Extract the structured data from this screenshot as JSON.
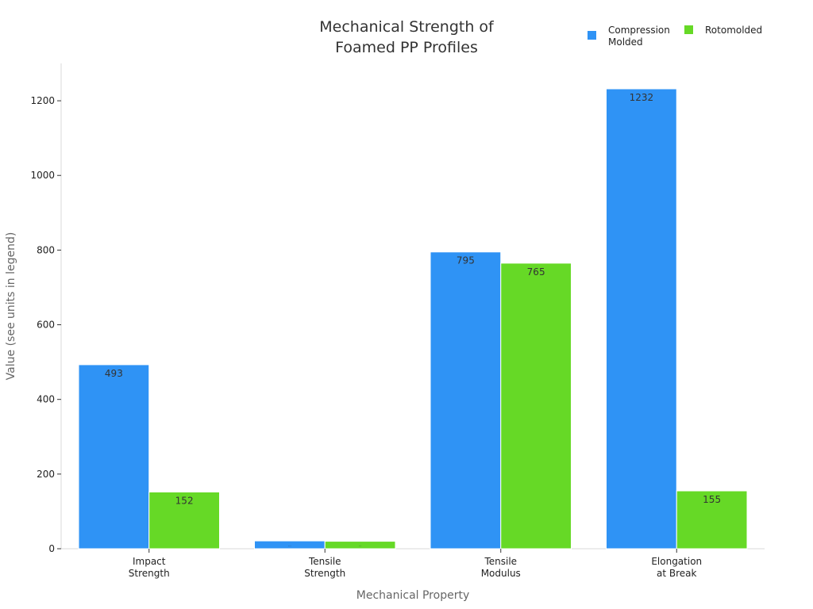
{
  "chart_data": {
    "type": "bar",
    "title_lines": [
      "Mechanical Strength of",
      "Foamed PP Profiles"
    ],
    "xlabel": "Mechanical Property",
    "ylabel": "Value (see units in legend)",
    "categories": [
      [
        "Impact",
        "Strength"
      ],
      [
        "Tensile",
        "Strength"
      ],
      [
        "Tensile",
        "Modulus"
      ],
      [
        "Elongation",
        "at Break"
      ]
    ],
    "series": [
      {
        "name_lines": [
          "Compression",
          "Molded"
        ],
        "color": "#2f93f5",
        "values": [
          493,
          21,
          795,
          1232
        ],
        "labels": [
          "493",
          "...",
          "795",
          "1232"
        ]
      },
      {
        "name_lines": [
          "Rotomolded"
        ],
        "color": "#66d926",
        "values": [
          152,
          20,
          765,
          155
        ],
        "labels": [
          "152",
          "...",
          "765",
          "155"
        ]
      }
    ],
    "ylim": [
      0,
      1300
    ],
    "yticks": [
      0,
      200,
      400,
      600,
      800,
      1000,
      1200
    ],
    "grid": false,
    "legend_position": "top-right"
  }
}
